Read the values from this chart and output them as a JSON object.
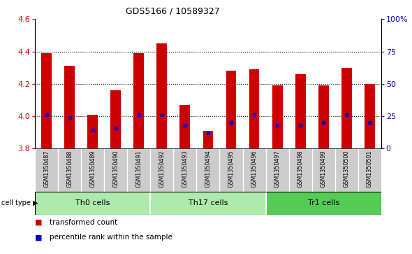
{
  "title": "GDS5166 / 10589327",
  "samples": [
    "GSM1350487",
    "GSM1350488",
    "GSM1350489",
    "GSM1350490",
    "GSM1350491",
    "GSM1350492",
    "GSM1350493",
    "GSM1350494",
    "GSM1350495",
    "GSM1350496",
    "GSM1350497",
    "GSM1350498",
    "GSM1350499",
    "GSM1350500",
    "GSM1350501"
  ],
  "transformed_count": [
    4.39,
    4.31,
    4.01,
    4.16,
    4.39,
    4.45,
    4.07,
    3.91,
    4.28,
    4.29,
    4.19,
    4.26,
    4.19,
    4.3,
    4.2
  ],
  "percentile_rank": [
    26,
    24,
    14,
    16,
    26,
    26,
    18,
    12,
    20,
    26,
    18,
    18,
    20,
    26,
    20
  ],
  "cell_groups": [
    {
      "label": "Th0 cells",
      "start": 0,
      "end": 5,
      "color": "#AEEAAE"
    },
    {
      "label": "Th17 cells",
      "start": 5,
      "end": 10,
      "color": "#AEEAAE"
    },
    {
      "label": "Tr1 cells",
      "start": 10,
      "end": 15,
      "color": "#55CC55"
    }
  ],
  "ylim_left": [
    3.8,
    4.6
  ],
  "ylim_right": [
    0,
    100
  ],
  "bar_color": "#CC0000",
  "dot_color": "#0000CC",
  "bar_width": 0.45,
  "yticks_left": [
    3.8,
    4.0,
    4.2,
    4.4,
    4.6
  ],
  "yticks_right": [
    0,
    25,
    50,
    75,
    100
  ],
  "tick_color_left": "#CC0000",
  "tick_color_right": "#0000CC",
  "grid_yticks": [
    4.0,
    4.2,
    4.4
  ],
  "xlabel_bg_color": "#CCCCCC",
  "cell_type_label": "cell type ▶",
  "legend_red_label": "transformed count",
  "legend_blue_label": "percentile rank within the sample"
}
